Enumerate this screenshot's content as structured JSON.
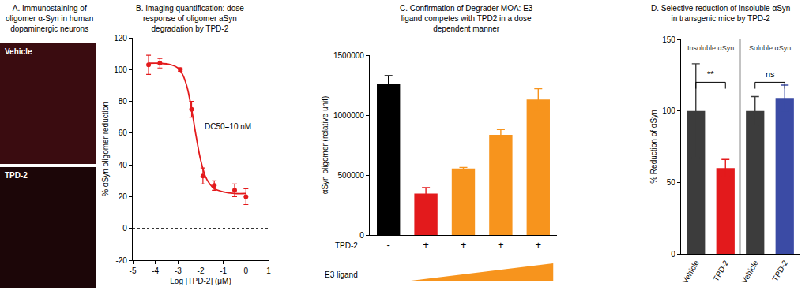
{
  "chart_data": [
    {
      "type": "image",
      "title": "A. Immunostaining of\noligomer α-Syn in human\ndopaminergic neurons",
      "panels": [
        {
          "label": "Vehicle"
        },
        {
          "label": "TPD-2"
        }
      ]
    },
    {
      "type": "scatter",
      "title": "B. Imaging quantification: dose\nresponse of oligomer aSyn\ndegradation by TPD-2",
      "x_label": "Log [TPD-2] (μM)",
      "y_label": "% αSyn oligomer reduction",
      "x": [
        -4.3,
        -3.8,
        -2.9,
        -2.4,
        -1.9,
        -1.4,
        -0.5,
        0
      ],
      "values": [
        103,
        104,
        100,
        75,
        33,
        27,
        24,
        20
      ],
      "error": [
        6,
        3,
        1,
        5,
        5,
        3,
        4,
        5
      ],
      "color": "#e31a1c",
      "marker": "circle",
      "curve": {
        "x": [
          -4.3,
          -3.8,
          -3.3,
          -3.0,
          -2.8,
          -2.6,
          -2.4,
          -2.2,
          -2.0,
          -1.8,
          -1.6,
          -1.4,
          -1.0,
          -0.5,
          0
        ],
        "values": [
          104,
          104,
          103,
          101,
          97,
          89,
          75,
          58,
          43,
          33,
          28,
          25,
          23,
          22,
          22
        ]
      },
      "annotations": [
        {
          "text": "DC50=10 nM"
        }
      ],
      "reference_lines": [
        {
          "y": 0,
          "line_style": "dot"
        }
      ],
      "xlim": [
        -5,
        1
      ],
      "xticks": [
        -5,
        -4,
        -3,
        -2,
        -1,
        0,
        1
      ],
      "ylim": [
        -20,
        120
      ],
      "yticks": [
        -20,
        0,
        20,
        40,
        60,
        80,
        100,
        120
      ],
      "grid": false
    },
    {
      "type": "bar",
      "title": "C. Confirmation of Degrader MOA: E3\nligand competes with TPD2 in a dose\ndependent manner",
      "y_label": "αSyn oligomer (relative unit)",
      "x_label": "TPD-2",
      "categories": [
        "-",
        "+",
        "+",
        "+",
        "+"
      ],
      "values": [
        1260000,
        345000,
        555000,
        835000,
        1130000
      ],
      "error": [
        70000,
        50000,
        8000,
        45000,
        90000
      ],
      "colors": [
        "#000000",
        "#e31a1c",
        "#f7941d",
        "#f7941d",
        "#f7941d"
      ],
      "ramp": {
        "label": "E3 ligand",
        "from": 1,
        "to": 4,
        "color": "#f7941d"
      },
      "ylim": [
        0,
        1500000
      ],
      "yticks": [
        0,
        500000,
        1000000,
        1500000
      ],
      "grid": false
    },
    {
      "type": "bar",
      "title": "D. Selective reduction of insoluble αSyn\nin transgenic mice by TPD-2",
      "y_label": "% Reduction of αSyn",
      "categories": [
        "Vehicle",
        "TPD-2",
        "Vehicle",
        "TPD-2"
      ],
      "values": [
        100,
        60,
        100,
        109
      ],
      "error": [
        33,
        6,
        10,
        9
      ],
      "colors": [
        "#3c3c3c",
        "#e31a1c",
        "#3c3c3c",
        "#3b4ba5"
      ],
      "groups": [
        {
          "label": "Insoluble αSyn",
          "from": 0,
          "to": 1
        },
        {
          "label": "Soluble αSyn",
          "from": 2,
          "to": 3
        }
      ],
      "significance": [
        {
          "from": 0,
          "to": 1,
          "label": "**"
        },
        {
          "from": 2,
          "to": 3,
          "label": "ns"
        }
      ],
      "ylim": [
        0,
        150
      ],
      "yticks": [
        0,
        50,
        100,
        150
      ],
      "grid": false
    }
  ]
}
